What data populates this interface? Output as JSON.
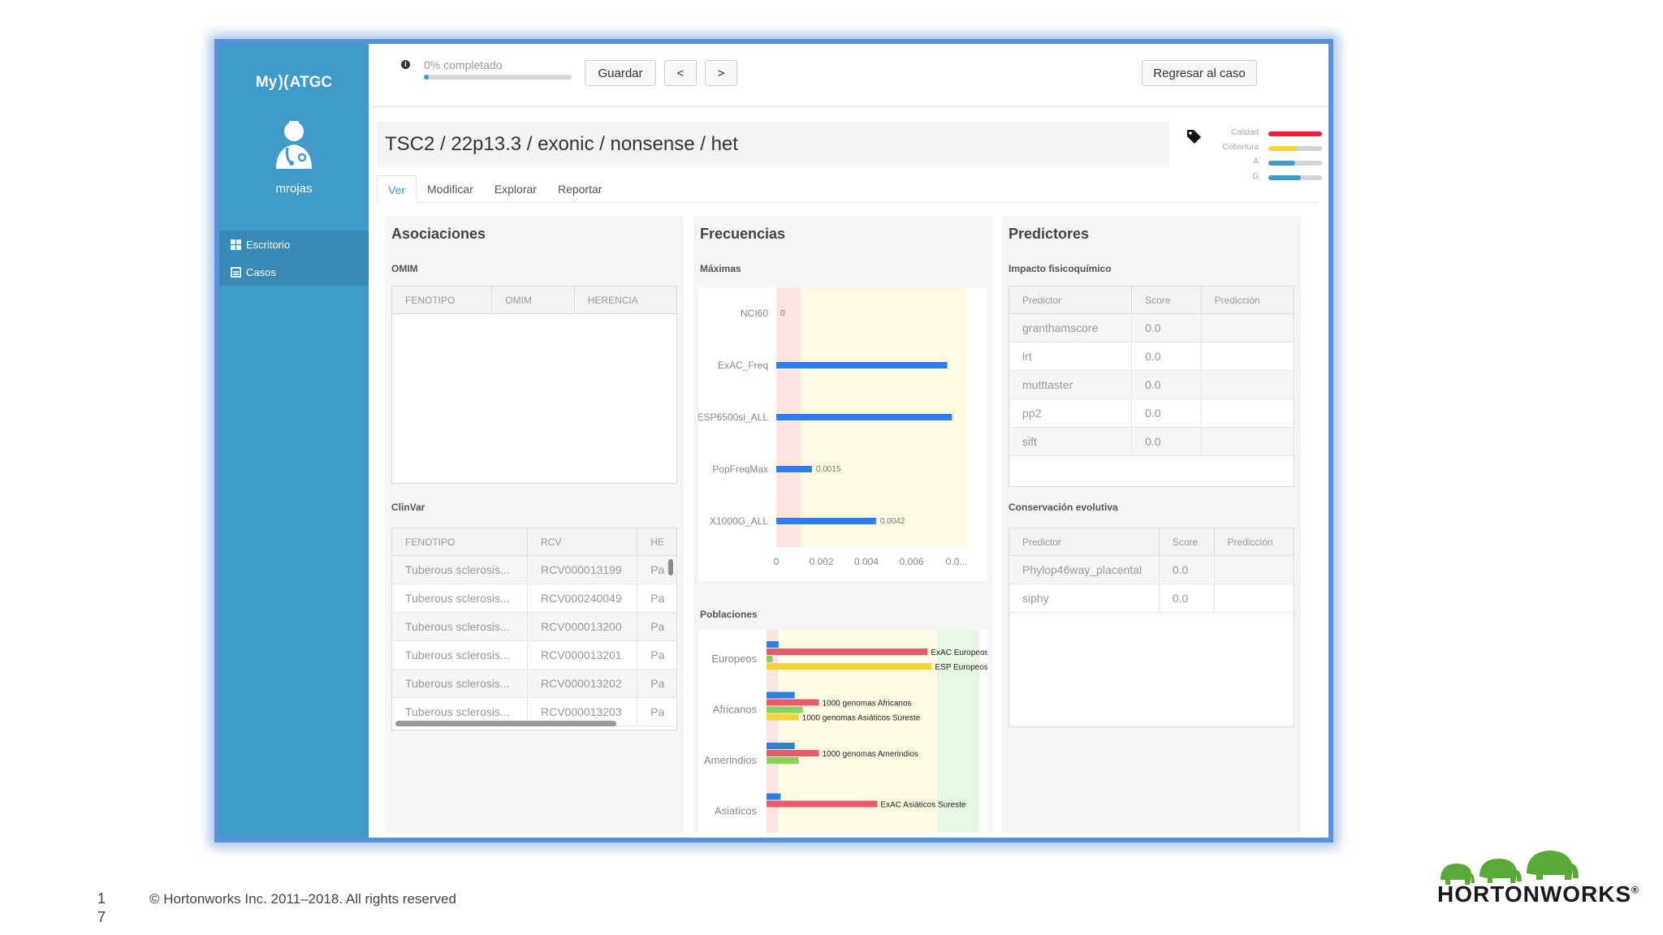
{
  "app": {
    "brand": {
      "left": "My",
      "right": "ATGC"
    },
    "username": "mrojas",
    "nav": [
      {
        "label": "Escritorio",
        "icon": "dashboard-icon"
      },
      {
        "label": "Casos",
        "icon": "list-icon"
      }
    ],
    "topbar": {
      "progress_label": "0% completado",
      "progress_value": 0,
      "save_label": "Guardar",
      "prev_label": "<",
      "next_label": ">",
      "back_label": "Regresar al caso"
    },
    "title": "TSC2 / 22p13.3 / exonic / nonsense / het",
    "metrics": [
      {
        "label": "Calidad",
        "fraction": 1.0,
        "color": "#e8213a"
      },
      {
        "label": "Cobertura",
        "fraction": 0.55,
        "color": "#f3d23b"
      },
      {
        "label": "A",
        "fraction": 0.5,
        "color": "#3f9ac9"
      },
      {
        "label": "G",
        "fraction": 0.6,
        "color": "#3f9ac9"
      }
    ],
    "tabs": [
      "Ver",
      "Modificar",
      "Explorar",
      "Reportar"
    ],
    "asociaciones": {
      "title": "Asociaciones",
      "omim": {
        "label": "OMIM",
        "columns": [
          "FENOTIPO",
          "OMIM",
          "HERENCIA"
        ]
      },
      "clinvar": {
        "label": "ClinVar",
        "columns": [
          "FENOTIPO",
          "RCV",
          "HE"
        ],
        "rows": [
          [
            "Tuberous sclerosis...",
            "RCV000013199",
            "Pa"
          ],
          [
            "Tuberous sclerosis...",
            "RCV000240049",
            "Pa"
          ],
          [
            "Tuberous sclerosis...",
            "RCV000013200",
            "Pa"
          ],
          [
            "Tuberous sclerosis...",
            "RCV000013201",
            "Pa"
          ],
          [
            "Tuberous sclerosis...",
            "RCV000013202",
            "Pa"
          ],
          [
            "Tuberous sclerosis...",
            "RCV000013203",
            "Pa"
          ]
        ]
      }
    },
    "frecuencias": {
      "title": "Frecuencias",
      "maximas_label": "Máximas",
      "poblaciones_label": "Poblaciones"
    },
    "predictores": {
      "title": "Predictores",
      "impacto": {
        "label": "Impacto fisicoquímico",
        "columns": [
          "Predictor",
          "Score",
          "Predicción"
        ],
        "rows": [
          [
            "granthamscore",
            "0.0",
            ""
          ],
          [
            "lrt",
            "0.0",
            ""
          ],
          [
            "mutttaster",
            "0.0",
            ""
          ],
          [
            "pp2",
            "0.0",
            ""
          ],
          [
            "sift",
            "0.0",
            ""
          ]
        ]
      },
      "conservacion": {
        "label": "Conservación evolutiva",
        "columns": [
          "Predictor",
          "Score",
          "Predicción"
        ],
        "rows": [
          [
            "Phylop46way_placental",
            "0.0",
            ""
          ],
          [
            "siphy",
            "0.0",
            ""
          ]
        ]
      }
    }
  },
  "chart_data": [
    {
      "type": "bar",
      "orientation": "horizontal",
      "title": "Máximas",
      "categories": [
        "NCI60",
        "ExAC_Freq",
        "ESP6500si_ALL",
        "PopFreqMax",
        "X1000G_ALL"
      ],
      "values": [
        0,
        0.0072,
        0.0074,
        0.0015,
        0.0042
      ],
      "data_labels": [
        "0",
        "",
        "",
        "0.0015",
        "0.0042"
      ],
      "xlim": [
        0,
        0.008
      ],
      "x_ticks": [
        "0",
        "0.002",
        "0.004",
        "0.006",
        "0.0..."
      ],
      "bar_color": "#2f7fe0"
    },
    {
      "type": "bar",
      "orientation": "horizontal",
      "title": "Poblaciones",
      "categories": [
        "Europeos",
        "Africanos",
        "Amerindios",
        "Asiaticos"
      ],
      "groups": [
        {
          "category": "Europeos",
          "bars": [
            {
              "color": "#2f7fe0",
              "value": 0.06,
              "label": ""
            },
            {
              "color": "#e65a6a",
              "value": 0.8,
              "label": "ExAC Europeos no finlandeses"
            },
            {
              "color": "#86d35a",
              "value": 0.03,
              "label": ""
            },
            {
              "color": "#f3d23b",
              "value": 0.82,
              "label": "ESP Europeos"
            }
          ]
        },
        {
          "category": "Africanos",
          "bars": [
            {
              "color": "#2f7fe0",
              "value": 0.14,
              "label": ""
            },
            {
              "color": "#e65a6a",
              "value": 0.26,
              "label": "1000 genomas Africanos"
            },
            {
              "color": "#86d35a",
              "value": 0.18,
              "label": ""
            },
            {
              "color": "#f3d23b",
              "value": 0.16,
              "label": "1000 genomas Asiáticos Sureste"
            }
          ]
        },
        {
          "category": "Amerindios",
          "bars": [
            {
              "color": "#2f7fe0",
              "value": 0.14,
              "label": ""
            },
            {
              "color": "#e65a6a",
              "value": 0.26,
              "label": "1000 genomas Amerindios"
            },
            {
              "color": "#86d35a",
              "value": 0.16,
              "label": ""
            }
          ]
        },
        {
          "category": "Asiaticos",
          "bars": [
            {
              "color": "#2f7fe0",
              "value": 0.07,
              "label": ""
            },
            {
              "color": "#e65a6a",
              "value": 0.55,
              "label": "ExAC Asiáticos Sureste"
            }
          ]
        }
      ]
    }
  ],
  "footer": {
    "page_number": [
      "1",
      "7"
    ],
    "copyright": "© Hortonworks Inc. 2011–2018. All rights reserved",
    "logo_text": "HORTONWORKS",
    "logo_mark": "®"
  }
}
